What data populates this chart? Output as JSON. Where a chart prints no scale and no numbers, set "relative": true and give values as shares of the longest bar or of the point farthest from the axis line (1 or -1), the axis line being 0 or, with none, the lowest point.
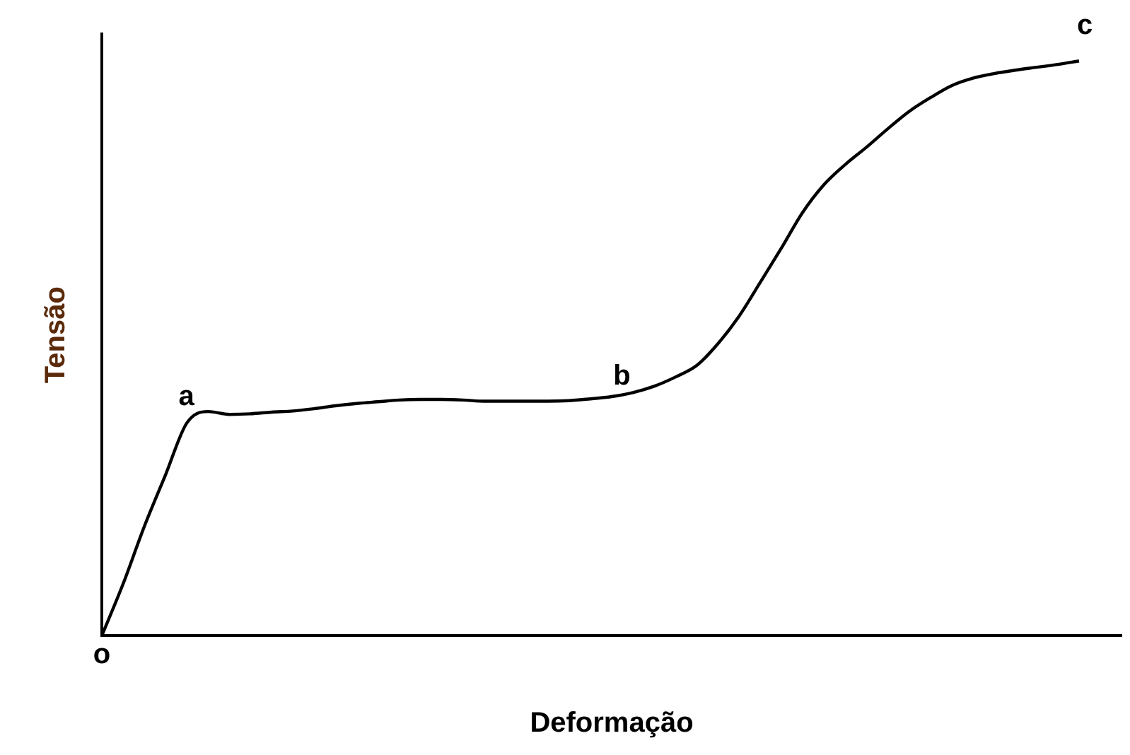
{
  "chart_data": {
    "type": "line",
    "relative": true,
    "xlabel": "Deformação",
    "ylabel": "Tensão",
    "annotations": [
      "a",
      "b",
      "c",
      "o"
    ],
    "color": "#000000",
    "grid": false,
    "legend": false,
    "marker": "none",
    "categories": [
      null,
      null,
      null,
      null,
      null,
      null,
      null,
      null,
      null,
      null,
      null,
      null,
      null,
      null,
      null,
      null,
      null,
      null,
      null,
      null,
      null,
      null,
      null,
      null,
      null,
      null,
      null,
      null,
      null,
      null,
      null,
      null,
      null,
      null,
      null,
      null,
      null,
      null,
      null,
      null,
      null,
      null,
      null,
      null,
      null,
      null,
      null,
      null,
      null
    ],
    "values": [
      0,
      0.09,
      0.19,
      0.28,
      0.37,
      0.39,
      0.385,
      0.386,
      0.389,
      0.391,
      0.395,
      0.4,
      0.404,
      0.407,
      0.41,
      0.411,
      0.411,
      0.41,
      0.408,
      0.408,
      0.408,
      0.408,
      0.409,
      0.412,
      0.416,
      0.423,
      0.434,
      0.45,
      0.47,
      0.508,
      0.556,
      0.615,
      0.675,
      0.737,
      0.785,
      0.82,
      0.85,
      0.882,
      0.912,
      0.936,
      0.957,
      0.97,
      0.978,
      0.984,
      0.989,
      0.994,
      1,
      null,
      null
    ]
  }
}
